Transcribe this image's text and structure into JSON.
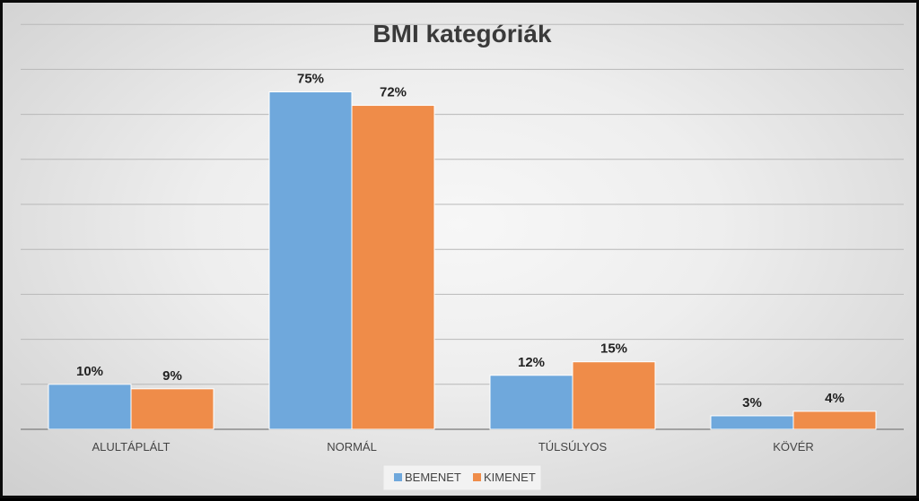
{
  "chart_data": {
    "type": "bar",
    "title": "BMI kategóriák",
    "categories": [
      "ALULTÁPLÁLT",
      "NORMÁL",
      "TÚLSÚLYOS",
      "KÖVÉR"
    ],
    "series": [
      {
        "name": "BEMENET",
        "values": [
          10,
          75,
          12,
          3
        ],
        "labels": [
          "10%",
          "75%",
          "12%",
          "3%"
        ],
        "color": "#6fa8dc"
      },
      {
        "name": "KIMENET",
        "values": [
          9,
          72,
          15,
          4
        ],
        "labels": [
          "9%",
          "72%",
          "15%",
          "4%"
        ],
        "color": "#ef8c49"
      }
    ],
    "ylim": [
      0,
      90
    ],
    "grid": true,
    "legend": "bottom",
    "unit": "%"
  }
}
